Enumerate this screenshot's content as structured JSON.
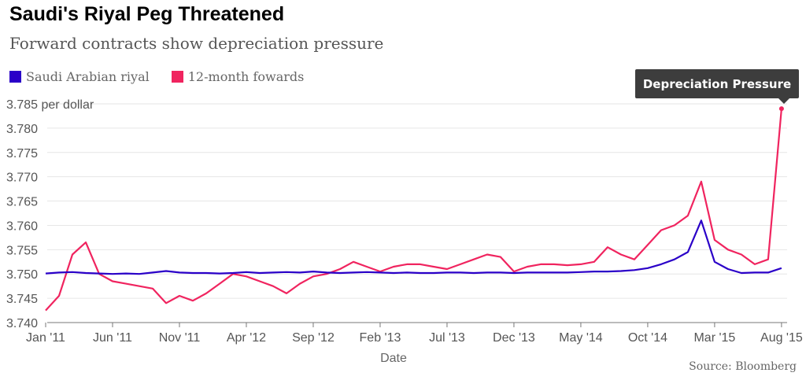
{
  "title": "Saudi's Riyal Peg Threatened",
  "subtitle": "Forward contracts show depreciation pressure",
  "source": "Source: Bloomberg",
  "annotation": "Depreciation Pressure",
  "colors": {
    "riyal": "#2a00c8",
    "forwards": "#f0245f",
    "grid": "#e6e6e6",
    "tooltip": "#3d3d3d"
  },
  "legend": [
    {
      "label": "Saudi Arabian riyal",
      "color": "#2a00c8"
    },
    {
      "label": "12-month fowards",
      "color": "#f0245f"
    }
  ],
  "chart_data": {
    "type": "line",
    "title": "Saudi's Riyal Peg Threatened",
    "subtitle": "Forward contracts show depreciation pressure",
    "xlabel": "Date",
    "ylabel": "",
    "y_unit_label": "3.785 per dollar",
    "xlim": [
      "2011-01",
      "2015-08"
    ],
    "ylim": [
      3.74,
      3.785
    ],
    "x_ticks": [
      "Jan '11",
      "Jun '11",
      "Nov '11",
      "Apr '12",
      "Sep '12",
      "Feb '13",
      "Jul '13",
      "Dec '13",
      "May '14",
      "Oct '14",
      "Mar '15",
      "Aug '15"
    ],
    "y_ticks": [
      "3.740",
      "3.745",
      "3.750",
      "3.755",
      "3.760",
      "3.765",
      "3.770",
      "3.775",
      "3.780",
      "3.785 per dollar"
    ],
    "grid": "horizontal",
    "legend_position": "top-left",
    "series": [
      {
        "name": "Saudi Arabian riyal",
        "color": "#2a00c8",
        "x": [
          "2011-01",
          "2011-02",
          "2011-03",
          "2011-04",
          "2011-05",
          "2011-06",
          "2011-07",
          "2011-08",
          "2011-09",
          "2011-10",
          "2011-11",
          "2011-12",
          "2012-01",
          "2012-02",
          "2012-03",
          "2012-04",
          "2012-05",
          "2012-06",
          "2012-07",
          "2012-08",
          "2012-09",
          "2012-10",
          "2012-11",
          "2012-12",
          "2013-01",
          "2013-02",
          "2013-03",
          "2013-04",
          "2013-05",
          "2013-06",
          "2013-07",
          "2013-08",
          "2013-09",
          "2013-10",
          "2013-11",
          "2013-12",
          "2014-01",
          "2014-02",
          "2014-03",
          "2014-04",
          "2014-05",
          "2014-06",
          "2014-07",
          "2014-08",
          "2014-09",
          "2014-10",
          "2014-11",
          "2014-12",
          "2015-01",
          "2015-02",
          "2015-03",
          "2015-04",
          "2015-05",
          "2015-06",
          "2015-07",
          "2015-08"
        ],
        "values": [
          3.7501,
          3.7503,
          3.7504,
          3.7502,
          3.7501,
          3.75,
          3.7501,
          3.75,
          3.7503,
          3.7506,
          3.7503,
          3.7502,
          3.7502,
          3.7501,
          3.7502,
          3.7504,
          3.7502,
          3.7503,
          3.7504,
          3.7503,
          3.7505,
          3.7503,
          3.7502,
          3.7503,
          3.7504,
          3.7503,
          3.7502,
          3.7503,
          3.7502,
          3.7502,
          3.7503,
          3.7503,
          3.7502,
          3.7503,
          3.7503,
          3.7502,
          3.7503,
          3.7503,
          3.7503,
          3.7503,
          3.7504,
          3.7505,
          3.7505,
          3.7506,
          3.7508,
          3.7512,
          3.752,
          3.753,
          3.7545,
          3.761,
          3.7525,
          3.751,
          3.7502,
          3.7503,
          3.7503,
          3.7512
        ]
      },
      {
        "name": "12-month fowards",
        "color": "#f0245f",
        "x": [
          "2011-01",
          "2011-02",
          "2011-03",
          "2011-04",
          "2011-05",
          "2011-06",
          "2011-07",
          "2011-08",
          "2011-09",
          "2011-10",
          "2011-11",
          "2011-12",
          "2012-01",
          "2012-02",
          "2012-03",
          "2012-04",
          "2012-05",
          "2012-06",
          "2012-07",
          "2012-08",
          "2012-09",
          "2012-10",
          "2012-11",
          "2012-12",
          "2013-01",
          "2013-02",
          "2013-03",
          "2013-04",
          "2013-05",
          "2013-06",
          "2013-07",
          "2013-08",
          "2013-09",
          "2013-10",
          "2013-11",
          "2013-12",
          "2014-01",
          "2014-02",
          "2014-03",
          "2014-04",
          "2014-05",
          "2014-06",
          "2014-07",
          "2014-08",
          "2014-09",
          "2014-10",
          "2014-11",
          "2014-12",
          "2015-01",
          "2015-02",
          "2015-03",
          "2015-04",
          "2015-05",
          "2015-06",
          "2015-07",
          "2015-08"
        ],
        "values": [
          3.7425,
          3.7455,
          3.754,
          3.7565,
          3.75,
          3.7485,
          3.748,
          3.7475,
          3.747,
          3.744,
          3.7455,
          3.7445,
          3.746,
          3.748,
          3.75,
          3.7495,
          3.7485,
          3.7475,
          3.746,
          3.748,
          3.7495,
          3.75,
          3.751,
          3.7525,
          3.7515,
          3.7505,
          3.7515,
          3.752,
          3.752,
          3.7515,
          3.751,
          3.752,
          3.753,
          3.754,
          3.7535,
          3.7505,
          3.7515,
          3.752,
          3.752,
          3.7518,
          3.752,
          3.7525,
          3.7555,
          3.754,
          3.753,
          3.756,
          3.759,
          3.76,
          3.762,
          3.769,
          3.757,
          3.755,
          3.754,
          3.752,
          3.753,
          3.784
        ]
      }
    ]
  }
}
